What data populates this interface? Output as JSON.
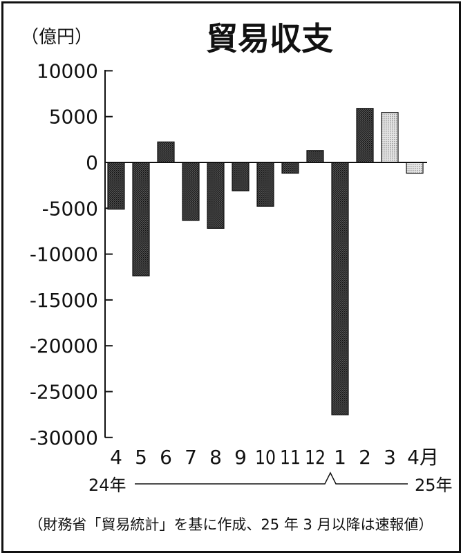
{
  "chart_data": {
    "type": "bar",
    "title": "貿易収支",
    "ylabel": "（億円）",
    "ylim": [
      -30000,
      10000
    ],
    "yticks": [
      10000,
      5000,
      0,
      -5000,
      -10000,
      -15000,
      -20000,
      -25000,
      -30000
    ],
    "categories": [
      "4",
      "5",
      "6",
      "7",
      "8",
      "9",
      "10",
      "11",
      "12",
      "1",
      "2",
      "3",
      "4月"
    ],
    "values": [
      -5100,
      -12370,
      2240,
      -6330,
      -7190,
      -3090,
      -4780,
      -1180,
      1300,
      -27530,
      5900,
      5450,
      -1180
    ],
    "preliminary": [
      false,
      false,
      false,
      false,
      false,
      false,
      false,
      false,
      false,
      false,
      false,
      true,
      true
    ],
    "year_labels": {
      "start": "24年",
      "end": "25年"
    },
    "grid": false,
    "colors": {
      "confirmed": "#3a3a3a",
      "preliminary": "#c8c8c8"
    },
    "note": "（財務省「貿易統計」を基に作成、25 年 3 月以降は速報値）"
  }
}
